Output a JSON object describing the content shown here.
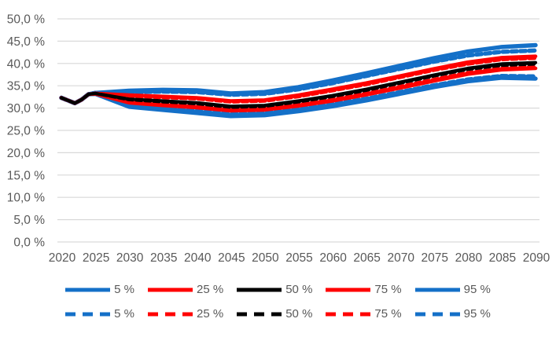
{
  "chart_data": {
    "type": "line",
    "title": "",
    "xlabel": "",
    "ylabel": "",
    "xlim": [
      2020,
      2090
    ],
    "ylim": [
      0,
      50
    ],
    "grid": true,
    "legend_position": "bottom",
    "x_tick_labels": [
      "2020",
      "2025",
      "2030",
      "2035",
      "2040",
      "2045",
      "2050",
      "2055",
      "2060",
      "2065",
      "2070",
      "2075",
      "2080",
      "2085",
      "2090"
    ],
    "x_tick_values": [
      2020,
      2025,
      2030,
      2035,
      2040,
      2045,
      2050,
      2055,
      2060,
      2065,
      2070,
      2075,
      2080,
      2085,
      2090
    ],
    "y_tick_labels": [
      "0,0 %",
      "5,0 %",
      "10,0 %",
      "15,0 %",
      "20,0 %",
      "25,0 %",
      "30,0 %",
      "35,0 %",
      "40,0 %",
      "45,0 %",
      "50,0 %"
    ],
    "y_tick_values": [
      0,
      5,
      10,
      15,
      20,
      25,
      30,
      35,
      40,
      45,
      50
    ],
    "x": [
      2020,
      2021,
      2022,
      2023,
      2024,
      2025,
      2030,
      2035,
      2040,
      2045,
      2050,
      2055,
      2060,
      2065,
      2070,
      2075,
      2080,
      2085,
      2090
    ],
    "series": [
      {
        "name": "95 %",
        "variant": "solid",
        "color_role": "blue",
        "values": [
          32.3,
          31.7,
          31.1,
          31.9,
          33.1,
          33.4,
          33.9,
          34.1,
          34.0,
          33.3,
          33.6,
          34.7,
          36.2,
          37.8,
          39.5,
          41.2,
          42.7,
          43.7,
          44.1
        ]
      },
      {
        "name": "5 %",
        "variant": "solid",
        "color_role": "blue",
        "values": [
          32.3,
          31.7,
          31.1,
          31.9,
          33.1,
          33.2,
          30.3,
          29.6,
          28.9,
          28.2,
          28.4,
          29.3,
          30.4,
          31.7,
          33.2,
          34.7,
          36.0,
          36.8,
          36.6
        ]
      },
      {
        "name": "95 %",
        "variant": "dashed",
        "color_role": "blue",
        "values": [
          32.3,
          31.7,
          31.1,
          31.9,
          33.1,
          33.4,
          33.6,
          33.7,
          33.6,
          33.0,
          33.2,
          34.2,
          35.6,
          37.2,
          38.8,
          40.4,
          41.8,
          42.6,
          42.9
        ]
      },
      {
        "name": "5 %",
        "variant": "dashed",
        "color_role": "blue",
        "values": [
          32.3,
          31.7,
          31.1,
          31.9,
          33.1,
          33.2,
          30.6,
          29.9,
          29.3,
          28.6,
          28.8,
          29.7,
          30.8,
          32.1,
          33.6,
          35.1,
          36.4,
          37.2,
          37.1
        ]
      },
      {
        "name": "75 %",
        "variant": "solid",
        "color_role": "red",
        "values": [
          32.3,
          31.7,
          31.1,
          31.9,
          33.1,
          33.3,
          32.9,
          32.6,
          32.3,
          31.6,
          31.8,
          32.9,
          34.2,
          35.6,
          37.2,
          38.8,
          40.3,
          41.3,
          41.6
        ]
      },
      {
        "name": "25 %",
        "variant": "solid",
        "color_role": "red",
        "values": [
          32.3,
          31.7,
          31.1,
          31.9,
          33.1,
          33.2,
          31.2,
          30.6,
          30.1,
          29.4,
          29.6,
          30.5,
          31.6,
          33.0,
          34.5,
          36.1,
          37.6,
          38.6,
          38.9
        ]
      },
      {
        "name": "75 %",
        "variant": "dashed",
        "color_role": "red",
        "values": [
          32.3,
          31.7,
          31.1,
          31.9,
          33.1,
          33.3,
          32.7,
          32.4,
          32.1,
          31.4,
          31.6,
          32.6,
          33.9,
          35.3,
          36.9,
          38.5,
          39.9,
          40.9,
          41.2
        ]
      },
      {
        "name": "25 %",
        "variant": "dashed",
        "color_role": "red",
        "values": [
          32.3,
          31.7,
          31.1,
          31.9,
          33.1,
          33.2,
          31.4,
          30.9,
          30.4,
          29.7,
          29.9,
          30.8,
          31.9,
          33.3,
          34.8,
          36.4,
          37.9,
          38.9,
          39.2
        ]
      },
      {
        "name": "50 %",
        "variant": "solid",
        "color_role": "black",
        "values": [
          32.3,
          31.7,
          31.1,
          31.9,
          33.1,
          33.3,
          32.0,
          31.6,
          31.2,
          30.4,
          30.6,
          31.6,
          32.8,
          34.2,
          35.8,
          37.4,
          38.9,
          39.9,
          40.2
        ]
      },
      {
        "name": "50 %",
        "variant": "dashed",
        "color_role": "black",
        "values": [
          32.3,
          31.7,
          31.1,
          31.9,
          33.1,
          33.3,
          31.9,
          31.4,
          31.0,
          30.2,
          30.4,
          31.4,
          32.6,
          34.0,
          35.6,
          37.2,
          38.7,
          39.6,
          39.9
        ]
      }
    ]
  },
  "legend": {
    "rows": [
      {
        "style": "solid",
        "items": [
          {
            "label": "5 %",
            "color_role": "blue"
          },
          {
            "label": "25 %",
            "color_role": "red"
          },
          {
            "label": "50 %",
            "color_role": "black"
          },
          {
            "label": "75 %",
            "color_role": "red"
          },
          {
            "label": "95 %",
            "color_role": "blue"
          }
        ]
      },
      {
        "style": "dashed",
        "items": [
          {
            "label": "5 %",
            "color_role": "blue"
          },
          {
            "label": "25 %",
            "color_role": "red"
          },
          {
            "label": "50 %",
            "color_role": "black"
          },
          {
            "label": "75 %",
            "color_role": "red"
          },
          {
            "label": "95 %",
            "color_role": "blue"
          }
        ]
      }
    ]
  },
  "colors": {
    "blue": "#1470C8",
    "red": "#FF0000",
    "black": "#000000",
    "grid": "#D9D9D9",
    "text": "#595959",
    "background": "#FFFFFF"
  }
}
